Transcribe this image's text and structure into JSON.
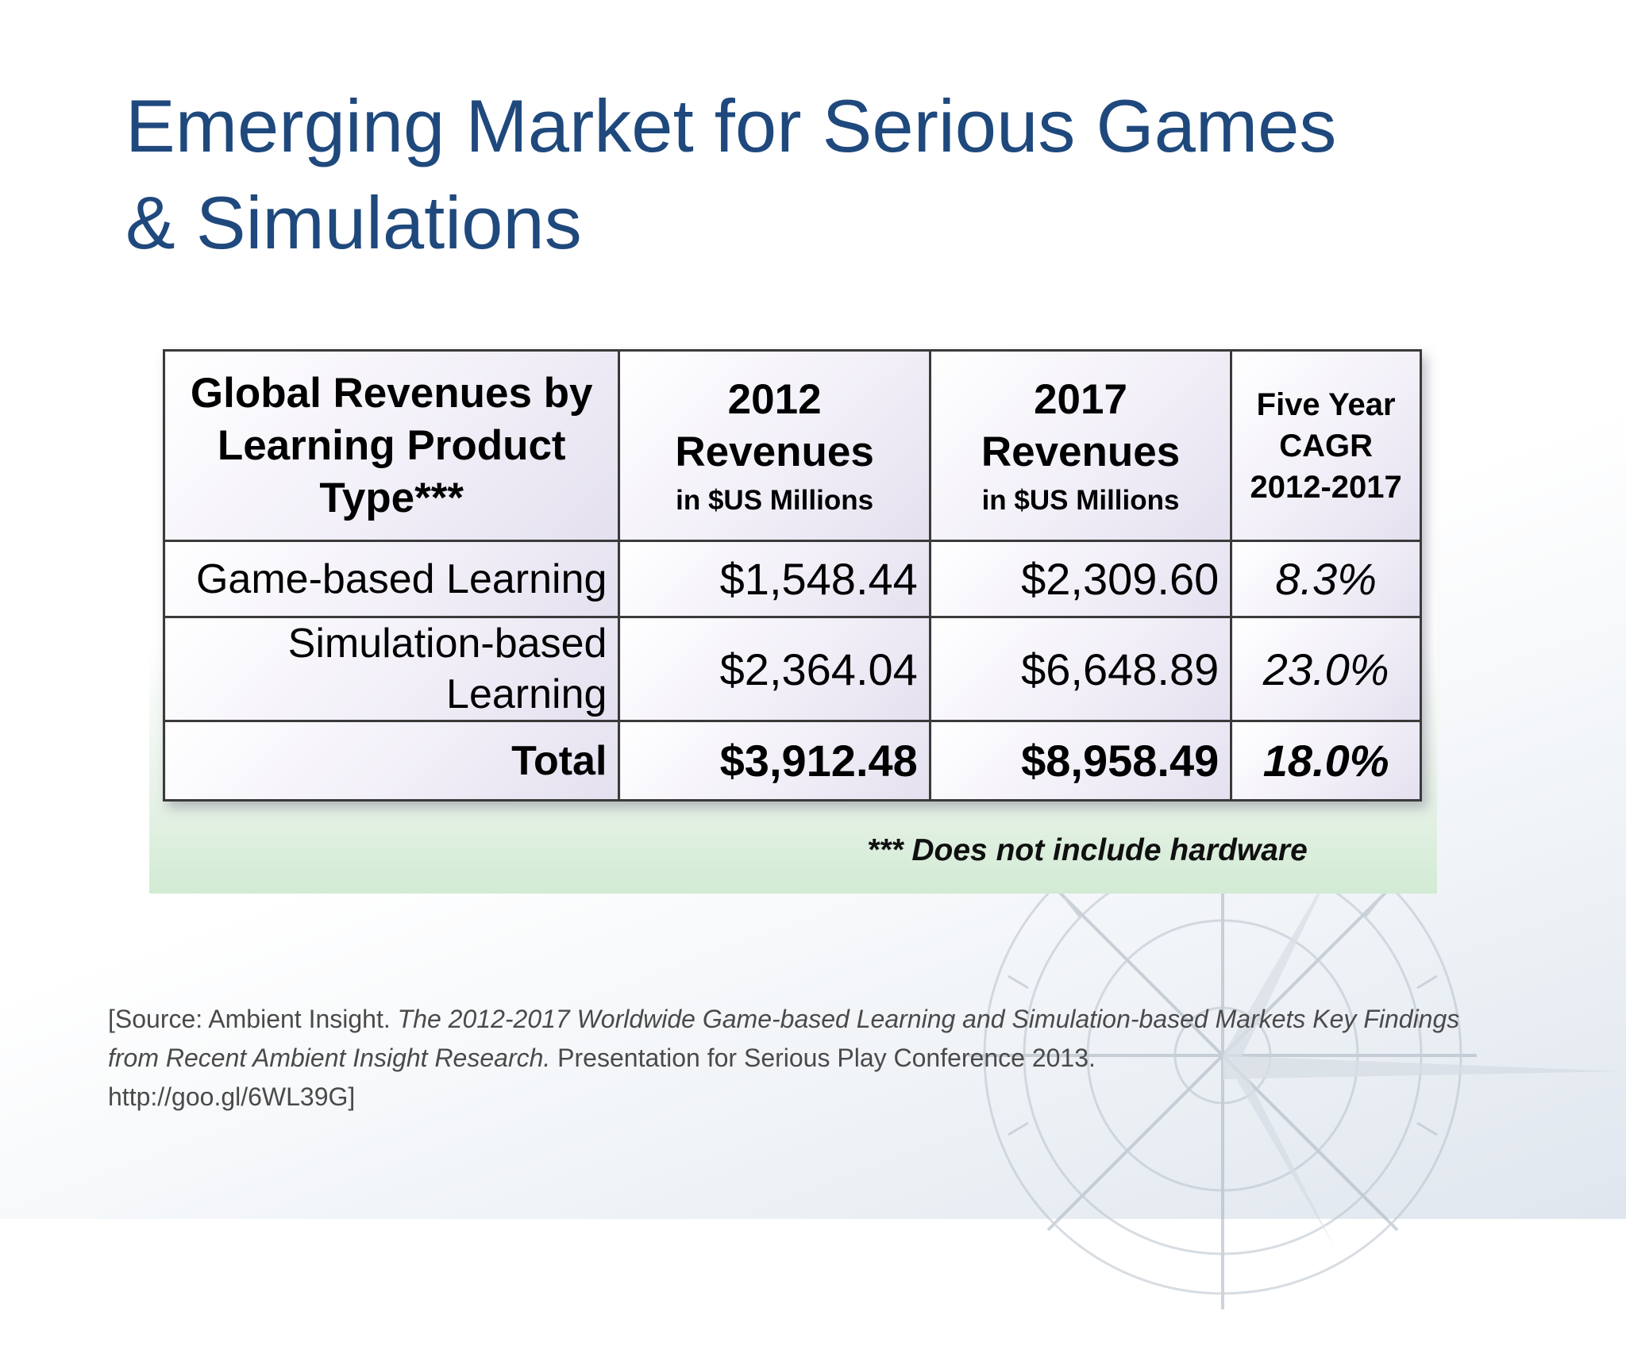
{
  "slide": {
    "title_line1": "Emerging Market for Serious Games",
    "title_line2": "& Simulations"
  },
  "table": {
    "header": {
      "col1": "Global Revenues by Learning Product Type***",
      "col2_year": "2012",
      "col2_label": "Revenues",
      "col2_unit": "in $US Millions",
      "col3_year": "2017",
      "col3_label": "Revenues",
      "col3_unit": "in $US Millions",
      "col4": "Five Year CAGR 2012-2017"
    },
    "rows": [
      {
        "type": "Game-based Learning",
        "rev2012": "$1,548.44",
        "rev2017": "$2,309.60",
        "cagr": "8.3%"
      },
      {
        "type": "Simulation-based Learning",
        "rev2012": "$2,364.04",
        "rev2017": "$6,648.89",
        "cagr": "23.0%"
      },
      {
        "type": "Total",
        "rev2012": "$3,912.48",
        "rev2017": "$8,958.49",
        "cagr": "18.0%"
      }
    ],
    "footnote": "*** Does not include hardware"
  },
  "source": {
    "prefix": "[Source: Ambient Insight. ",
    "italic": "The 2012-2017 Worldwide Game-based Learning and Simulation-based Markets Key Findings from Recent Ambient Insight Research.",
    "suffix": " Presentation for Serious Play Conference 2013.",
    "url": "http://goo.gl/6WL39G]"
  },
  "colors": {
    "title": "#1f497d",
    "border": "#3a3a3a"
  },
  "icons": {
    "background": "compass-rose-watermark"
  }
}
